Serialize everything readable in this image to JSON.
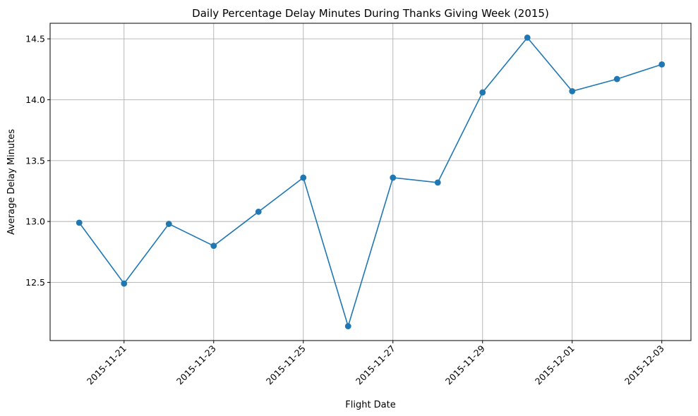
{
  "chart_data": {
    "type": "line",
    "title": "Daily Percentage Delay Minutes During Thanks Giving Week (2015)",
    "xlabel": "Flight Date",
    "ylabel": "Average Delay Minutes",
    "x": [
      "2015-11-20",
      "2015-11-21",
      "2015-11-22",
      "2015-11-23",
      "2015-11-24",
      "2015-11-25",
      "2015-11-26",
      "2015-11-27",
      "2015-11-28",
      "2015-11-29",
      "2015-11-30",
      "2015-12-01",
      "2015-12-02",
      "2015-12-03"
    ],
    "values": [
      12.99,
      12.49,
      12.98,
      12.8,
      13.08,
      13.36,
      12.14,
      13.36,
      13.32,
      14.06,
      14.51,
      14.07,
      14.17,
      14.29
    ],
    "xticks": [
      "2015-11-21",
      "2015-11-23",
      "2015-11-25",
      "2015-11-27",
      "2015-11-29",
      "2015-12-01",
      "2015-12-03"
    ],
    "yticks": [
      "12.5",
      "13.0",
      "13.5",
      "14.0",
      "14.5"
    ],
    "xlim": [
      "2015-11-19T08:24",
      "2015-12-03T15:36"
    ],
    "ylim": [
      12.022,
      14.628
    ],
    "grid": true,
    "marker": "circle",
    "series_color": "#1f77b4"
  }
}
